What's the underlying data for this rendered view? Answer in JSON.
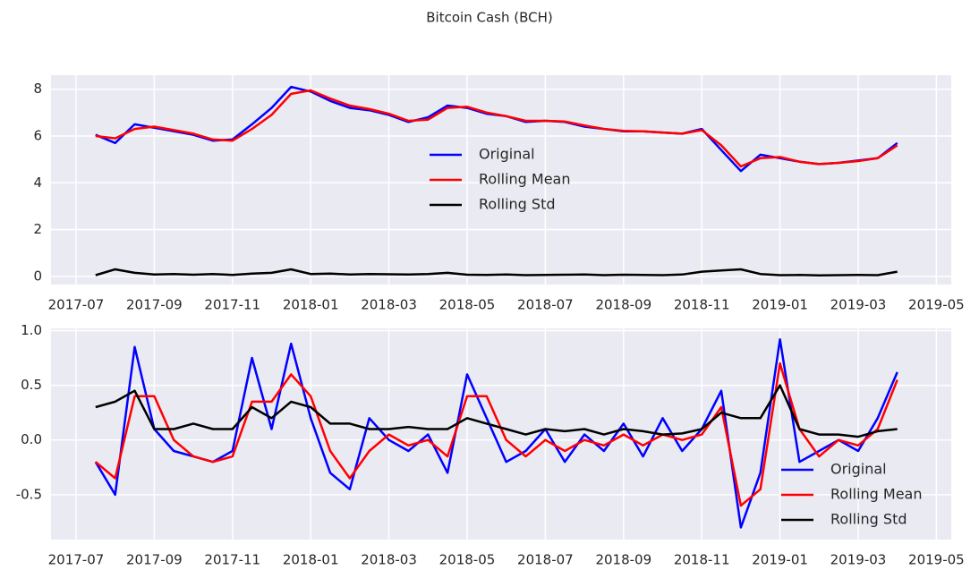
{
  "title": "Bitcoin Cash (BCH)",
  "chart_data": [
    {
      "type": "line",
      "legend": "center",
      "grid": true,
      "x": [
        0.5,
        1,
        1.5,
        2,
        2.5,
        3,
        3.5,
        4,
        4.5,
        5,
        5.5,
        6,
        6.5,
        7,
        7.5,
        8,
        8.5,
        9,
        9.5,
        10,
        10.5,
        11,
        11.5,
        12,
        12.5,
        13,
        13.5,
        14,
        14.5,
        15,
        15.5,
        16,
        16.5,
        17,
        17.5,
        18,
        18.5,
        19,
        19.5,
        20,
        20.5,
        21
      ],
      "xlim": [
        -0.64,
        22.38
      ],
      "xticks": [
        {
          "value": 0,
          "label": "2017-07"
        },
        {
          "value": 2,
          "label": "2017-09"
        },
        {
          "value": 4,
          "label": "2017-11"
        },
        {
          "value": 6,
          "label": "2018-01"
        },
        {
          "value": 8,
          "label": "2018-03"
        },
        {
          "value": 10,
          "label": "2018-05"
        },
        {
          "value": 12,
          "label": "2018-07"
        },
        {
          "value": 14,
          "label": "2018-09"
        },
        {
          "value": 16,
          "label": "2018-11"
        },
        {
          "value": 18,
          "label": "2019-01"
        },
        {
          "value": 20,
          "label": "2019-03"
        },
        {
          "value": 22,
          "label": "2019-05"
        }
      ],
      "ylim": [
        -0.35,
        8.6
      ],
      "yticks": [
        0,
        2,
        4,
        6,
        8
      ],
      "series": [
        {
          "name": "Original",
          "color": "#0000ff",
          "values": [
            6.05,
            5.7,
            6.5,
            6.35,
            6.2,
            6.05,
            5.8,
            5.85,
            6.5,
            7.2,
            8.1,
            7.9,
            7.5,
            7.2,
            7.1,
            6.9,
            6.6,
            6.8,
            7.3,
            7.2,
            6.95,
            6.85,
            6.6,
            6.65,
            6.6,
            6.4,
            6.3,
            6.2,
            6.2,
            6.15,
            6.1,
            6.3,
            5.4,
            4.5,
            5.2,
            5.05,
            4.9,
            4.8,
            4.85,
            4.95,
            5.05,
            5.7
          ]
        },
        {
          "name": "Rolling Mean",
          "color": "#ff0000",
          "values": [
            6.0,
            5.9,
            6.3,
            6.4,
            6.25,
            6.1,
            5.85,
            5.8,
            6.3,
            6.9,
            7.8,
            7.95,
            7.6,
            7.3,
            7.15,
            6.95,
            6.65,
            6.7,
            7.2,
            7.25,
            7.0,
            6.85,
            6.65,
            6.65,
            6.62,
            6.45,
            6.3,
            6.22,
            6.2,
            6.15,
            6.1,
            6.25,
            5.6,
            4.7,
            5.05,
            5.1,
            4.9,
            4.8,
            4.85,
            4.93,
            5.05,
            5.6
          ]
        },
        {
          "name": "Rolling Std",
          "color": "#000000",
          "values": [
            0.05,
            0.3,
            0.15,
            0.08,
            0.1,
            0.07,
            0.1,
            0.06,
            0.12,
            0.15,
            0.3,
            0.1,
            0.12,
            0.08,
            0.1,
            0.09,
            0.08,
            0.1,
            0.15,
            0.07,
            0.06,
            0.08,
            0.05,
            0.06,
            0.07,
            0.08,
            0.05,
            0.07,
            0.06,
            0.05,
            0.08,
            0.2,
            0.25,
            0.3,
            0.1,
            0.05,
            0.06,
            0.04,
            0.05,
            0.06,
            0.05,
            0.2
          ]
        }
      ]
    },
    {
      "type": "line",
      "legend": "lower right",
      "grid": true,
      "x": [
        0.5,
        1,
        1.5,
        2,
        2.5,
        3,
        3.5,
        4,
        4.5,
        5,
        5.5,
        6,
        6.5,
        7,
        7.5,
        8,
        8.5,
        9,
        9.5,
        10,
        10.5,
        11,
        11.5,
        12,
        12.5,
        13,
        13.5,
        14,
        14.5,
        15,
        15.5,
        16,
        16.5,
        17,
        17.5,
        18,
        18.5,
        19,
        19.5,
        20,
        20.5,
        21
      ],
      "xlim": [
        -0.64,
        22.38
      ],
      "xticks": [
        {
          "value": 0,
          "label": "2017-07"
        },
        {
          "value": 2,
          "label": "2017-09"
        },
        {
          "value": 4,
          "label": "2017-11"
        },
        {
          "value": 6,
          "label": "2018-01"
        },
        {
          "value": 8,
          "label": "2018-03"
        },
        {
          "value": 10,
          "label": "2018-05"
        },
        {
          "value": 12,
          "label": "2018-07"
        },
        {
          "value": 14,
          "label": "2018-09"
        },
        {
          "value": 16,
          "label": "2018-11"
        },
        {
          "value": 18,
          "label": "2019-01"
        },
        {
          "value": 20,
          "label": "2019-03"
        },
        {
          "value": 22,
          "label": "2019-05"
        }
      ],
      "ylim": [
        -0.91,
        1.02
      ],
      "yticks": [
        -0.5,
        {
          "value": 0,
          "label": "0.0"
        },
        0.5,
        {
          "value": 1,
          "label": "1.0"
        }
      ],
      "series": [
        {
          "name": "Original",
          "color": "#0000ff",
          "values": [
            -0.2,
            -0.5,
            0.85,
            0.1,
            -0.1,
            -0.15,
            -0.2,
            -0.1,
            0.75,
            0.1,
            0.88,
            0.2,
            -0.3,
            -0.45,
            0.2,
            0.0,
            -0.1,
            0.05,
            -0.3,
            0.6,
            0.2,
            -0.2,
            -0.1,
            0.1,
            -0.2,
            0.05,
            -0.1,
            0.15,
            -0.15,
            0.2,
            -0.1,
            0.1,
            0.45,
            -0.8,
            -0.3,
            0.92,
            -0.2,
            -0.1,
            0.0,
            -0.1,
            0.2,
            0.62
          ]
        },
        {
          "name": "Rolling Mean",
          "color": "#ff0000",
          "values": [
            -0.2,
            -0.35,
            0.4,
            0.4,
            0.0,
            -0.15,
            -0.2,
            -0.15,
            0.35,
            0.35,
            0.6,
            0.4,
            -0.1,
            -0.35,
            -0.1,
            0.05,
            -0.05,
            0.0,
            -0.15,
            0.4,
            0.4,
            0.0,
            -0.15,
            0.0,
            -0.1,
            0.0,
            -0.05,
            0.05,
            -0.05,
            0.05,
            0.0,
            0.05,
            0.3,
            -0.6,
            -0.45,
            0.7,
            0.1,
            -0.15,
            0.0,
            -0.05,
            0.1,
            0.55
          ]
        },
        {
          "name": "Rolling Std",
          "color": "#000000",
          "values": [
            0.3,
            0.35,
            0.45,
            0.1,
            0.1,
            0.15,
            0.1,
            0.1,
            0.3,
            0.2,
            0.35,
            0.3,
            0.15,
            0.15,
            0.1,
            0.1,
            0.12,
            0.1,
            0.1,
            0.2,
            0.15,
            0.1,
            0.05,
            0.1,
            0.08,
            0.1,
            0.05,
            0.1,
            0.08,
            0.05,
            0.06,
            0.1,
            0.25,
            0.2,
            0.2,
            0.5,
            0.1,
            0.05,
            0.05,
            0.03,
            0.08,
            0.1
          ]
        }
      ]
    }
  ]
}
